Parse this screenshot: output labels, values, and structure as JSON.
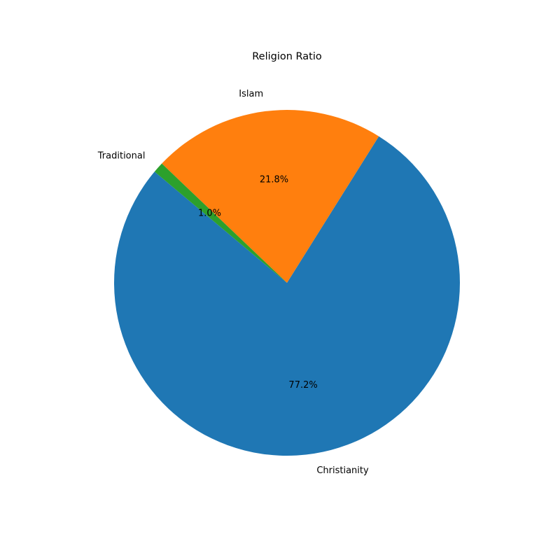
{
  "chart_data": {
    "type": "pie",
    "title": "Religion Ratio",
    "start_angle_deg": 140,
    "direction": "counterclockwise",
    "slices": [
      {
        "label": "Christianity",
        "value": 77.2,
        "pct_label": "77.2%",
        "color": "#1f77b4"
      },
      {
        "label": "Islam",
        "value": 21.8,
        "pct_label": "21.8%",
        "color": "#ff7f0e"
      },
      {
        "label": "Traditional",
        "value": 1.0,
        "pct_label": "1.0%",
        "color": "#2ca02c"
      }
    ]
  }
}
